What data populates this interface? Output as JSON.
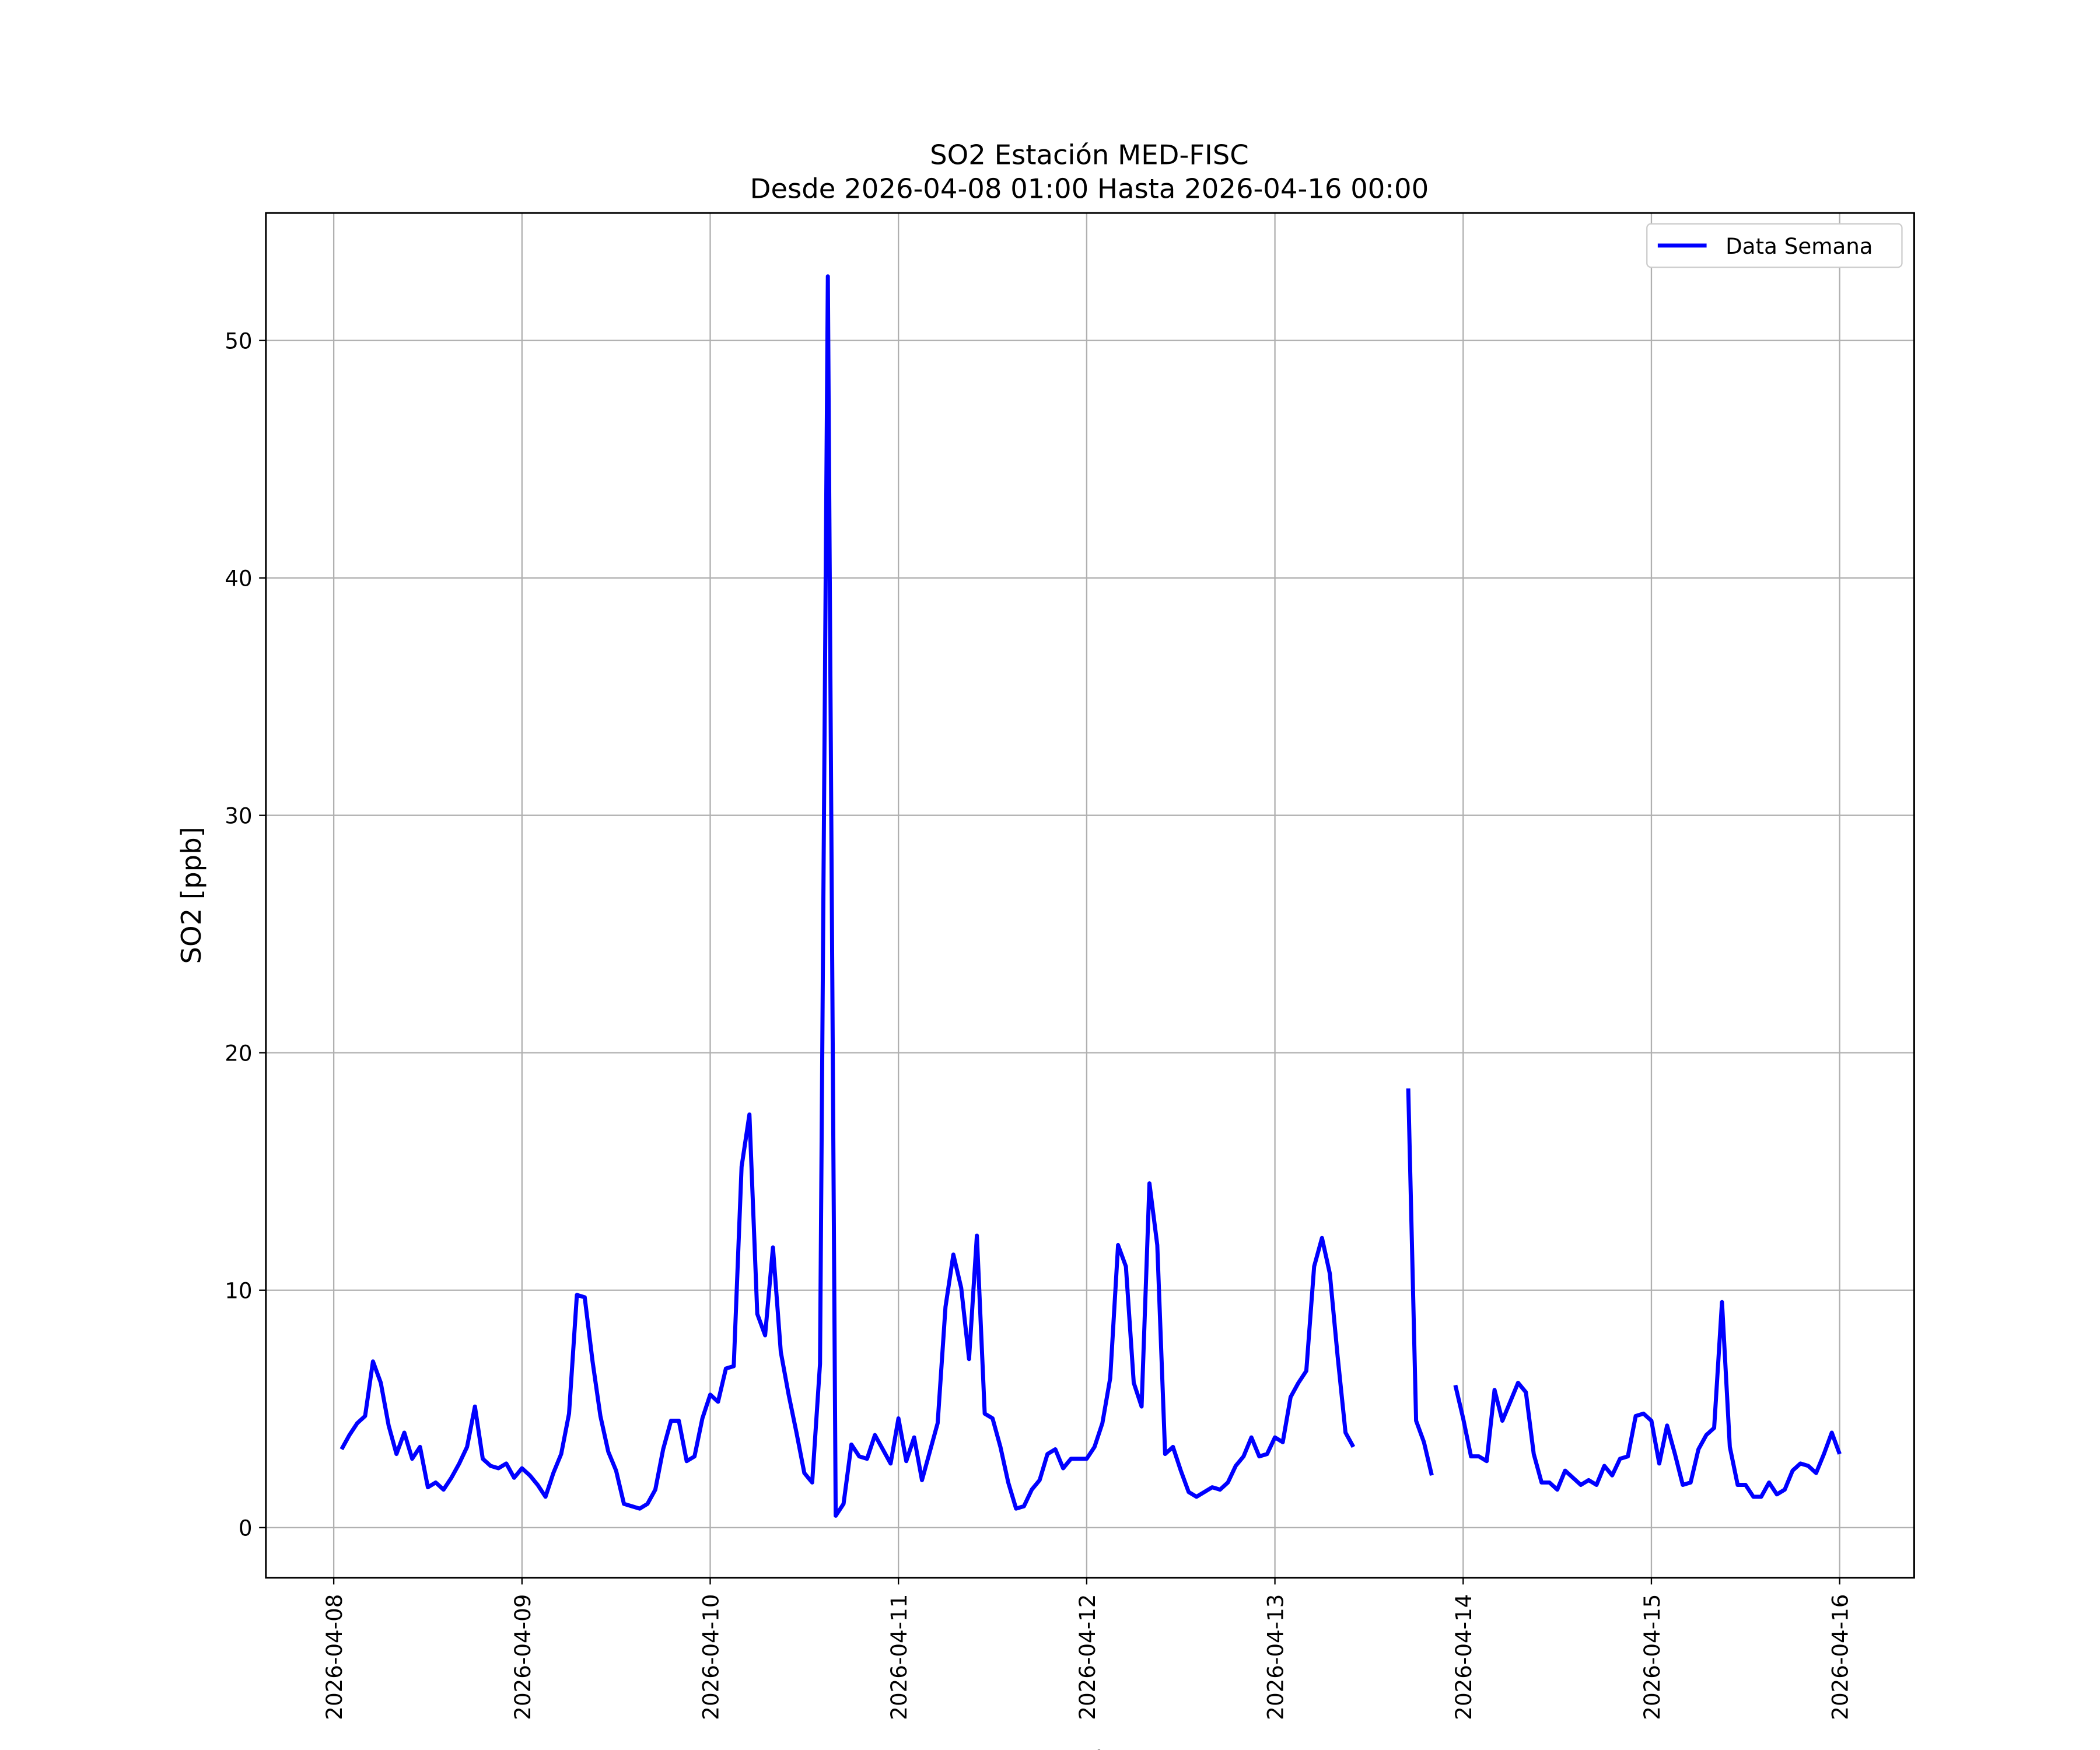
{
  "chart_data": {
    "type": "line",
    "title": "SO2 Estación MED-FISC",
    "subtitle": "Desde 2026-04-08 01:00 Hasta 2026-04-16 00:00",
    "x_label": "Fecha",
    "y_label": "SO2 [ppb]",
    "legend": "upper right",
    "grid": true,
    "xlim": [
      "2026-04-07 15:21",
      "2026-04-16 09:30"
    ],
    "ylim": [
      -2.11,
      55.37
    ],
    "xticks": [
      "2026-04-08",
      "2026-04-09",
      "2026-04-10",
      "2026-04-11",
      "2026-04-12",
      "2026-04-13",
      "2026-04-14",
      "2026-04-15",
      "2026-04-16"
    ],
    "yticks": [
      0,
      10,
      20,
      30,
      40,
      50
    ],
    "x": [
      "2026-04-08 01:00",
      "2026-04-08 02:00",
      "2026-04-08 03:00",
      "2026-04-08 04:00",
      "2026-04-08 05:00",
      "2026-04-08 06:00",
      "2026-04-08 07:00",
      "2026-04-08 08:00",
      "2026-04-08 09:00",
      "2026-04-08 10:00",
      "2026-04-08 11:00",
      "2026-04-08 12:00",
      "2026-04-08 13:00",
      "2026-04-08 14:00",
      "2026-04-08 15:00",
      "2026-04-08 16:00",
      "2026-04-08 17:00",
      "2026-04-08 18:00",
      "2026-04-08 19:00",
      "2026-04-08 20:00",
      "2026-04-08 21:00",
      "2026-04-08 22:00",
      "2026-04-08 23:00",
      "2026-04-09 00:00",
      "2026-04-09 01:00",
      "2026-04-09 02:00",
      "2026-04-09 03:00",
      "2026-04-09 04:00",
      "2026-04-09 05:00",
      "2026-04-09 06:00",
      "2026-04-09 07:00",
      "2026-04-09 08:00",
      "2026-04-09 09:00",
      "2026-04-09 10:00",
      "2026-04-09 11:00",
      "2026-04-09 12:00",
      "2026-04-09 13:00",
      "2026-04-09 14:00",
      "2026-04-09 15:00",
      "2026-04-09 16:00",
      "2026-04-09 17:00",
      "2026-04-09 18:00",
      "2026-04-09 19:00",
      "2026-04-09 20:00",
      "2026-04-09 21:00",
      "2026-04-09 22:00",
      "2026-04-09 23:00",
      "2026-04-10 00:00",
      "2026-04-10 01:00",
      "2026-04-10 02:00",
      "2026-04-10 03:00",
      "2026-04-10 04:00",
      "2026-04-10 05:00",
      "2026-04-10 06:00",
      "2026-04-10 07:00",
      "2026-04-10 08:00",
      "2026-04-10 09:00",
      "2026-04-10 10:00",
      "2026-04-10 11:00",
      "2026-04-10 12:00",
      "2026-04-10 13:00",
      "2026-04-10 14:00",
      "2026-04-10 15:00",
      "2026-04-10 16:00",
      "2026-04-10 17:00",
      "2026-04-10 18:00",
      "2026-04-10 19:00",
      "2026-04-10 20:00",
      "2026-04-10 21:00",
      "2026-04-10 22:00",
      "2026-04-10 23:00",
      "2026-04-11 00:00",
      "2026-04-11 01:00",
      "2026-04-11 02:00",
      "2026-04-11 03:00",
      "2026-04-11 04:00",
      "2026-04-11 05:00",
      "2026-04-11 06:00",
      "2026-04-11 07:00",
      "2026-04-11 08:00",
      "2026-04-11 09:00",
      "2026-04-11 10:00",
      "2026-04-11 11:00",
      "2026-04-11 12:00",
      "2026-04-11 13:00",
      "2026-04-11 14:00",
      "2026-04-11 15:00",
      "2026-04-11 16:00",
      "2026-04-11 17:00",
      "2026-04-11 18:00",
      "2026-04-11 19:00",
      "2026-04-11 20:00",
      "2026-04-11 21:00",
      "2026-04-11 22:00",
      "2026-04-11 23:00",
      "2026-04-12 00:00",
      "2026-04-12 01:00",
      "2026-04-12 02:00",
      "2026-04-12 03:00",
      "2026-04-12 04:00",
      "2026-04-12 05:00",
      "2026-04-12 06:00",
      "2026-04-12 07:00",
      "2026-04-12 08:00",
      "2026-04-12 09:00",
      "2026-04-12 10:00",
      "2026-04-12 11:00",
      "2026-04-12 12:00",
      "2026-04-12 13:00",
      "2026-04-12 14:00",
      "2026-04-12 15:00",
      "2026-04-12 16:00",
      "2026-04-12 17:00",
      "2026-04-12 18:00",
      "2026-04-12 19:00",
      "2026-04-12 20:00",
      "2026-04-12 21:00",
      "2026-04-12 22:00",
      "2026-04-12 23:00",
      "2026-04-13 00:00",
      "2026-04-13 01:00",
      "2026-04-13 02:00",
      "2026-04-13 03:00",
      "2026-04-13 04:00",
      "2026-04-13 05:00",
      "2026-04-13 06:00",
      "2026-04-13 07:00",
      "2026-04-13 08:00",
      "2026-04-13 09:00",
      "2026-04-13 10:00",
      "2026-04-13 11:00",
      "2026-04-13 12:00",
      "2026-04-13 13:00",
      "2026-04-13 14:00",
      "2026-04-13 15:00",
      "2026-04-13 16:00",
      "2026-04-13 17:00",
      "2026-04-13 18:00",
      "2026-04-13 19:00",
      "2026-04-13 20:00",
      "2026-04-13 21:00",
      "2026-04-13 22:00",
      "2026-04-13 23:00",
      "2026-04-14 00:00",
      "2026-04-14 01:00",
      "2026-04-14 02:00",
      "2026-04-14 03:00",
      "2026-04-14 04:00",
      "2026-04-14 05:00",
      "2026-04-14 06:00",
      "2026-04-14 07:00",
      "2026-04-14 08:00",
      "2026-04-14 09:00",
      "2026-04-14 10:00",
      "2026-04-14 11:00",
      "2026-04-14 12:00",
      "2026-04-14 13:00",
      "2026-04-14 14:00",
      "2026-04-14 15:00",
      "2026-04-14 16:00",
      "2026-04-14 17:00",
      "2026-04-14 18:00",
      "2026-04-14 19:00",
      "2026-04-14 20:00",
      "2026-04-14 21:00",
      "2026-04-14 22:00",
      "2026-04-14 23:00",
      "2026-04-15 00:00",
      "2026-04-15 01:00",
      "2026-04-15 02:00",
      "2026-04-15 03:00",
      "2026-04-15 04:00",
      "2026-04-15 05:00",
      "2026-04-15 06:00",
      "2026-04-15 07:00",
      "2026-04-15 08:00",
      "2026-04-15 09:00",
      "2026-04-15 10:00",
      "2026-04-15 11:00",
      "2026-04-15 12:00",
      "2026-04-15 13:00",
      "2026-04-15 14:00",
      "2026-04-15 15:00",
      "2026-04-15 16:00",
      "2026-04-15 17:00",
      "2026-04-15 18:00",
      "2026-04-15 19:00",
      "2026-04-15 20:00",
      "2026-04-15 21:00",
      "2026-04-15 22:00",
      "2026-04-15 23:00",
      "2026-04-16 00:00"
    ],
    "series": [
      {
        "name": "Data Semana",
        "color": "#0000ff",
        "values": [
          3.3,
          3.9,
          4.4,
          4.7,
          7.0,
          6.1,
          4.3,
          3.1,
          4.0,
          2.9,
          3.4,
          1.7,
          1.9,
          1.6,
          2.1,
          2.7,
          3.4,
          5.1,
          2.9,
          2.6,
          2.5,
          2.7,
          2.1,
          2.5,
          2.2,
          1.8,
          1.3,
          2.3,
          3.1,
          4.8,
          9.8,
          9.7,
          7.0,
          4.7,
          3.2,
          2.4,
          1.0,
          0.9,
          0.8,
          1.0,
          1.6,
          3.3,
          4.5,
          4.5,
          2.8,
          3.0,
          4.6,
          5.6,
          5.3,
          6.7,
          6.8,
          15.2,
          17.4,
          9.0,
          8.1,
          11.8,
          7.4,
          5.6,
          4.0,
          2.3,
          1.9,
          6.9,
          52.7,
          0.5,
          1.0,
          3.5,
          3.0,
          2.9,
          3.9,
          3.3,
          2.7,
          4.6,
          2.8,
          3.8,
          2.0,
          3.2,
          4.4,
          9.3,
          11.5,
          10.1,
          7.1,
          12.3,
          4.8,
          4.6,
          3.4,
          1.9,
          0.8,
          0.9,
          1.6,
          2.0,
          3.1,
          3.3,
          2.5,
          2.9,
          2.9,
          2.9,
          3.4,
          4.4,
          6.3,
          11.9,
          11.0,
          6.1,
          5.1,
          14.5,
          11.9,
          3.1,
          3.4,
          2.4,
          1.5,
          1.3,
          1.5,
          1.7,
          1.6,
          1.9,
          2.6,
          3.0,
          3.8,
          3.0,
          3.1,
          3.8,
          3.6,
          5.5,
          6.1,
          6.6,
          11.0,
          12.2,
          10.7,
          7.2,
          4.0,
          3.4,
          null,
          null,
          null,
          null,
          null,
          null,
          18.5,
          4.5,
          3.6,
          2.2,
          null,
          null,
          6.0,
          4.6,
          3.0,
          3.0,
          2.8,
          5.8,
          4.5,
          5.3,
          6.1,
          5.7,
          3.1,
          1.9,
          1.9,
          1.6,
          2.4,
          2.1,
          1.8,
          2.0,
          1.8,
          2.6,
          2.2,
          2.9,
          3.0,
          4.7,
          4.8,
          4.5,
          2.7,
          4.3,
          3.1,
          1.8,
          1.9,
          3.3,
          3.9,
          4.2,
          9.5,
          3.4,
          1.8,
          1.8,
          1.3,
          1.3,
          1.9,
          1.4,
          1.6,
          2.4,
          2.7,
          2.6,
          2.3,
          3.1,
          4.0,
          3.1
        ]
      }
    ]
  }
}
